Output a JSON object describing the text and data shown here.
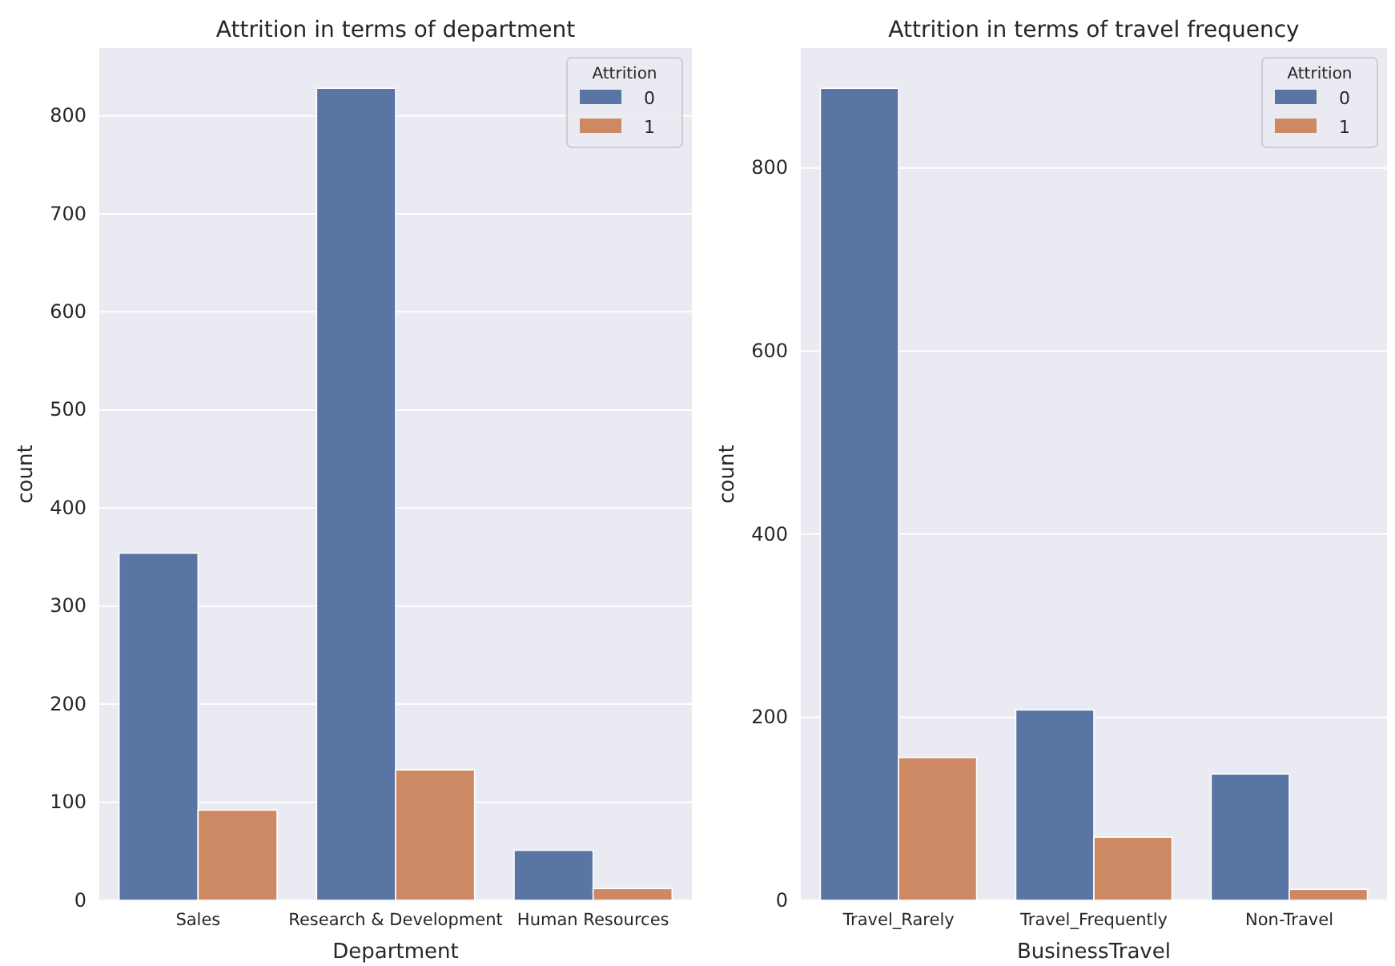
{
  "chart_data": [
    {
      "type": "bar",
      "title": "Attrition in terms of department",
      "xlabel": "Department",
      "ylabel": "count",
      "categories": [
        "Sales",
        "Research & Development",
        "Human Resources"
      ],
      "series": [
        {
          "name": "0",
          "color": "#5975a4",
          "values": [
            354,
            828,
            51
          ]
        },
        {
          "name": "1",
          "color": "#cc8963",
          "values": [
            92,
            133,
            12
          ]
        }
      ],
      "ylim": [
        0,
        869
      ],
      "yticks": [
        0,
        100,
        200,
        300,
        400,
        500,
        600,
        700,
        800
      ],
      "grid": "y",
      "legend": "top right",
      "legend_title": "Attrition"
    },
    {
      "type": "bar",
      "title": "Attrition in terms of travel frequency",
      "xlabel": "BusinessTravel",
      "ylabel": "count",
      "categories": [
        "Travel_Rarely",
        "Travel_Frequently",
        "Non-Travel"
      ],
      "series": [
        {
          "name": "0",
          "color": "#5975a4",
          "values": [
            887,
            208,
            138
          ]
        },
        {
          "name": "1",
          "color": "#cc8963",
          "values": [
            156,
            69,
            12
          ]
        }
      ],
      "ylim": [
        0,
        931
      ],
      "yticks": [
        0,
        200,
        400,
        600,
        800
      ],
      "grid": "y",
      "legend": "top right",
      "legend_title": "Attrition"
    }
  ]
}
